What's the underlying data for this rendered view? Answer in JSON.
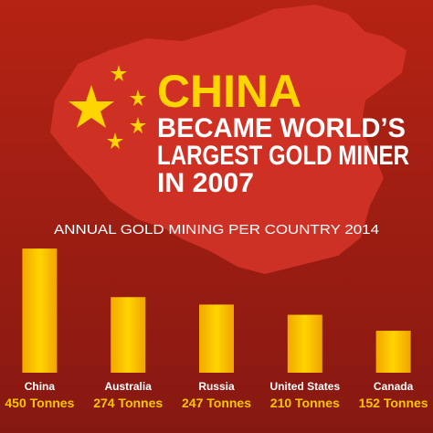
{
  "chart_data": {
    "type": "bar",
    "heading": {
      "title": "CHINA",
      "lines": [
        "BECAME WORLD’S",
        "LARGEST GOLD MINER",
        "IN 2007"
      ]
    },
    "title": "ANNUAL GOLD MINING PER COUNTRY 2014",
    "categories": [
      "China",
      "Australia",
      "Russia",
      "United States",
      "Canada"
    ],
    "values": [
      450,
      274,
      247,
      210,
      152
    ],
    "value_labels": [
      "450 Tonnes",
      "274 Tonnes",
      "247 Tonnes",
      "210 Tonnes",
      "152 Tonnes"
    ],
    "color": "#f7c600"
  }
}
